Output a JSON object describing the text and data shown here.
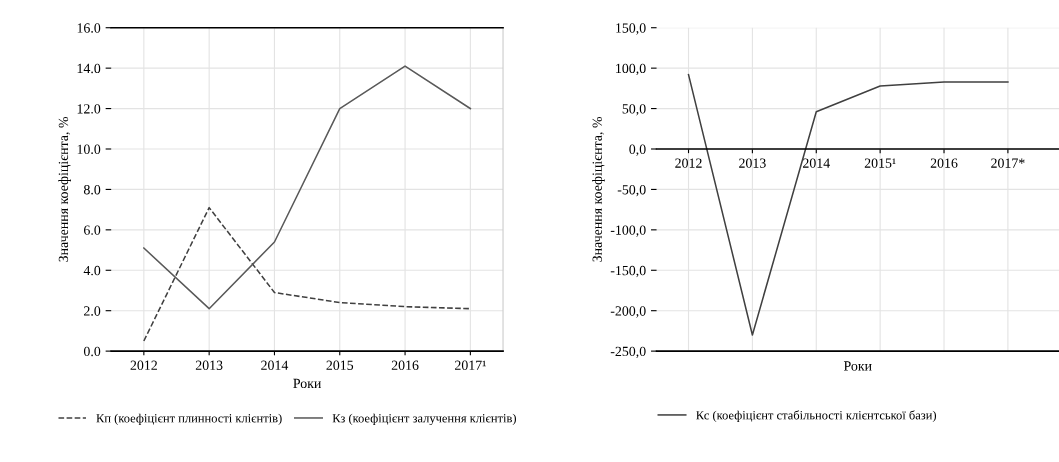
{
  "chart_data": [
    {
      "type": "line",
      "categories": [
        "2012",
        "2013",
        "2014",
        "2015",
        "2016",
        "2017¹"
      ],
      "xlabel": "Роки",
      "ylabel": "Значення коефіцієнта, %",
      "ylim": [
        0,
        16
      ],
      "yticks": [
        {
          "value": 0,
          "label": "0.0"
        },
        {
          "value": 2,
          "label": "2.0"
        },
        {
          "value": 4,
          "label": "4.0"
        },
        {
          "value": 6,
          "label": "6.0"
        },
        {
          "value": 8,
          "label": "8.0"
        },
        {
          "value": 10,
          "label": "10.0"
        },
        {
          "value": 12,
          "label": "12.0"
        },
        {
          "value": 14,
          "label": "14.0"
        },
        {
          "value": 16,
          "label": "16.0"
        }
      ],
      "grid": true,
      "legend": "bottom",
      "series": [
        {
          "name": "Кп (коефіцієнт плинності клієнтів)",
          "color": "#404040",
          "line_style": "dashed",
          "values": [
            0.5,
            7.1,
            2.9,
            2.4,
            2.2,
            2.1
          ]
        },
        {
          "name": "Кз (коефіцієнт залучення клієнтів)",
          "color": "#595959",
          "line_style": "solid",
          "values": [
            5.1,
            2.1,
            5.4,
            12.0,
            14.1,
            12.0
          ]
        }
      ]
    },
    {
      "type": "line",
      "categories": [
        "2012",
        "2013",
        "2014",
        "2015¹",
        "2016",
        "2017*"
      ],
      "xlabel": "Роки",
      "ylabel": "Значення коефіцієнта, %",
      "ylim": [
        -250,
        150
      ],
      "yticks": [
        {
          "value": -250,
          "label": "-250,0"
        },
        {
          "value": -200,
          "label": "-200,0"
        },
        {
          "value": -150,
          "label": "-150,0"
        },
        {
          "value": -100,
          "label": "-100,0"
        },
        {
          "value": -50,
          "label": "-50,0"
        },
        {
          "value": 0,
          "label": "0,0"
        },
        {
          "value": 50,
          "label": "50,0"
        },
        {
          "value": 100,
          "label": "100,0"
        },
        {
          "value": 150,
          "label": "150,0"
        }
      ],
      "grid": true,
      "legend": "bottom",
      "series": [
        {
          "name": "Кс (коефіцієнт стабільності клієнтської бази)",
          "color": "#404040",
          "line_style": "solid",
          "values": [
            92,
            -230,
            46,
            78,
            83,
            83
          ]
        }
      ]
    }
  ]
}
